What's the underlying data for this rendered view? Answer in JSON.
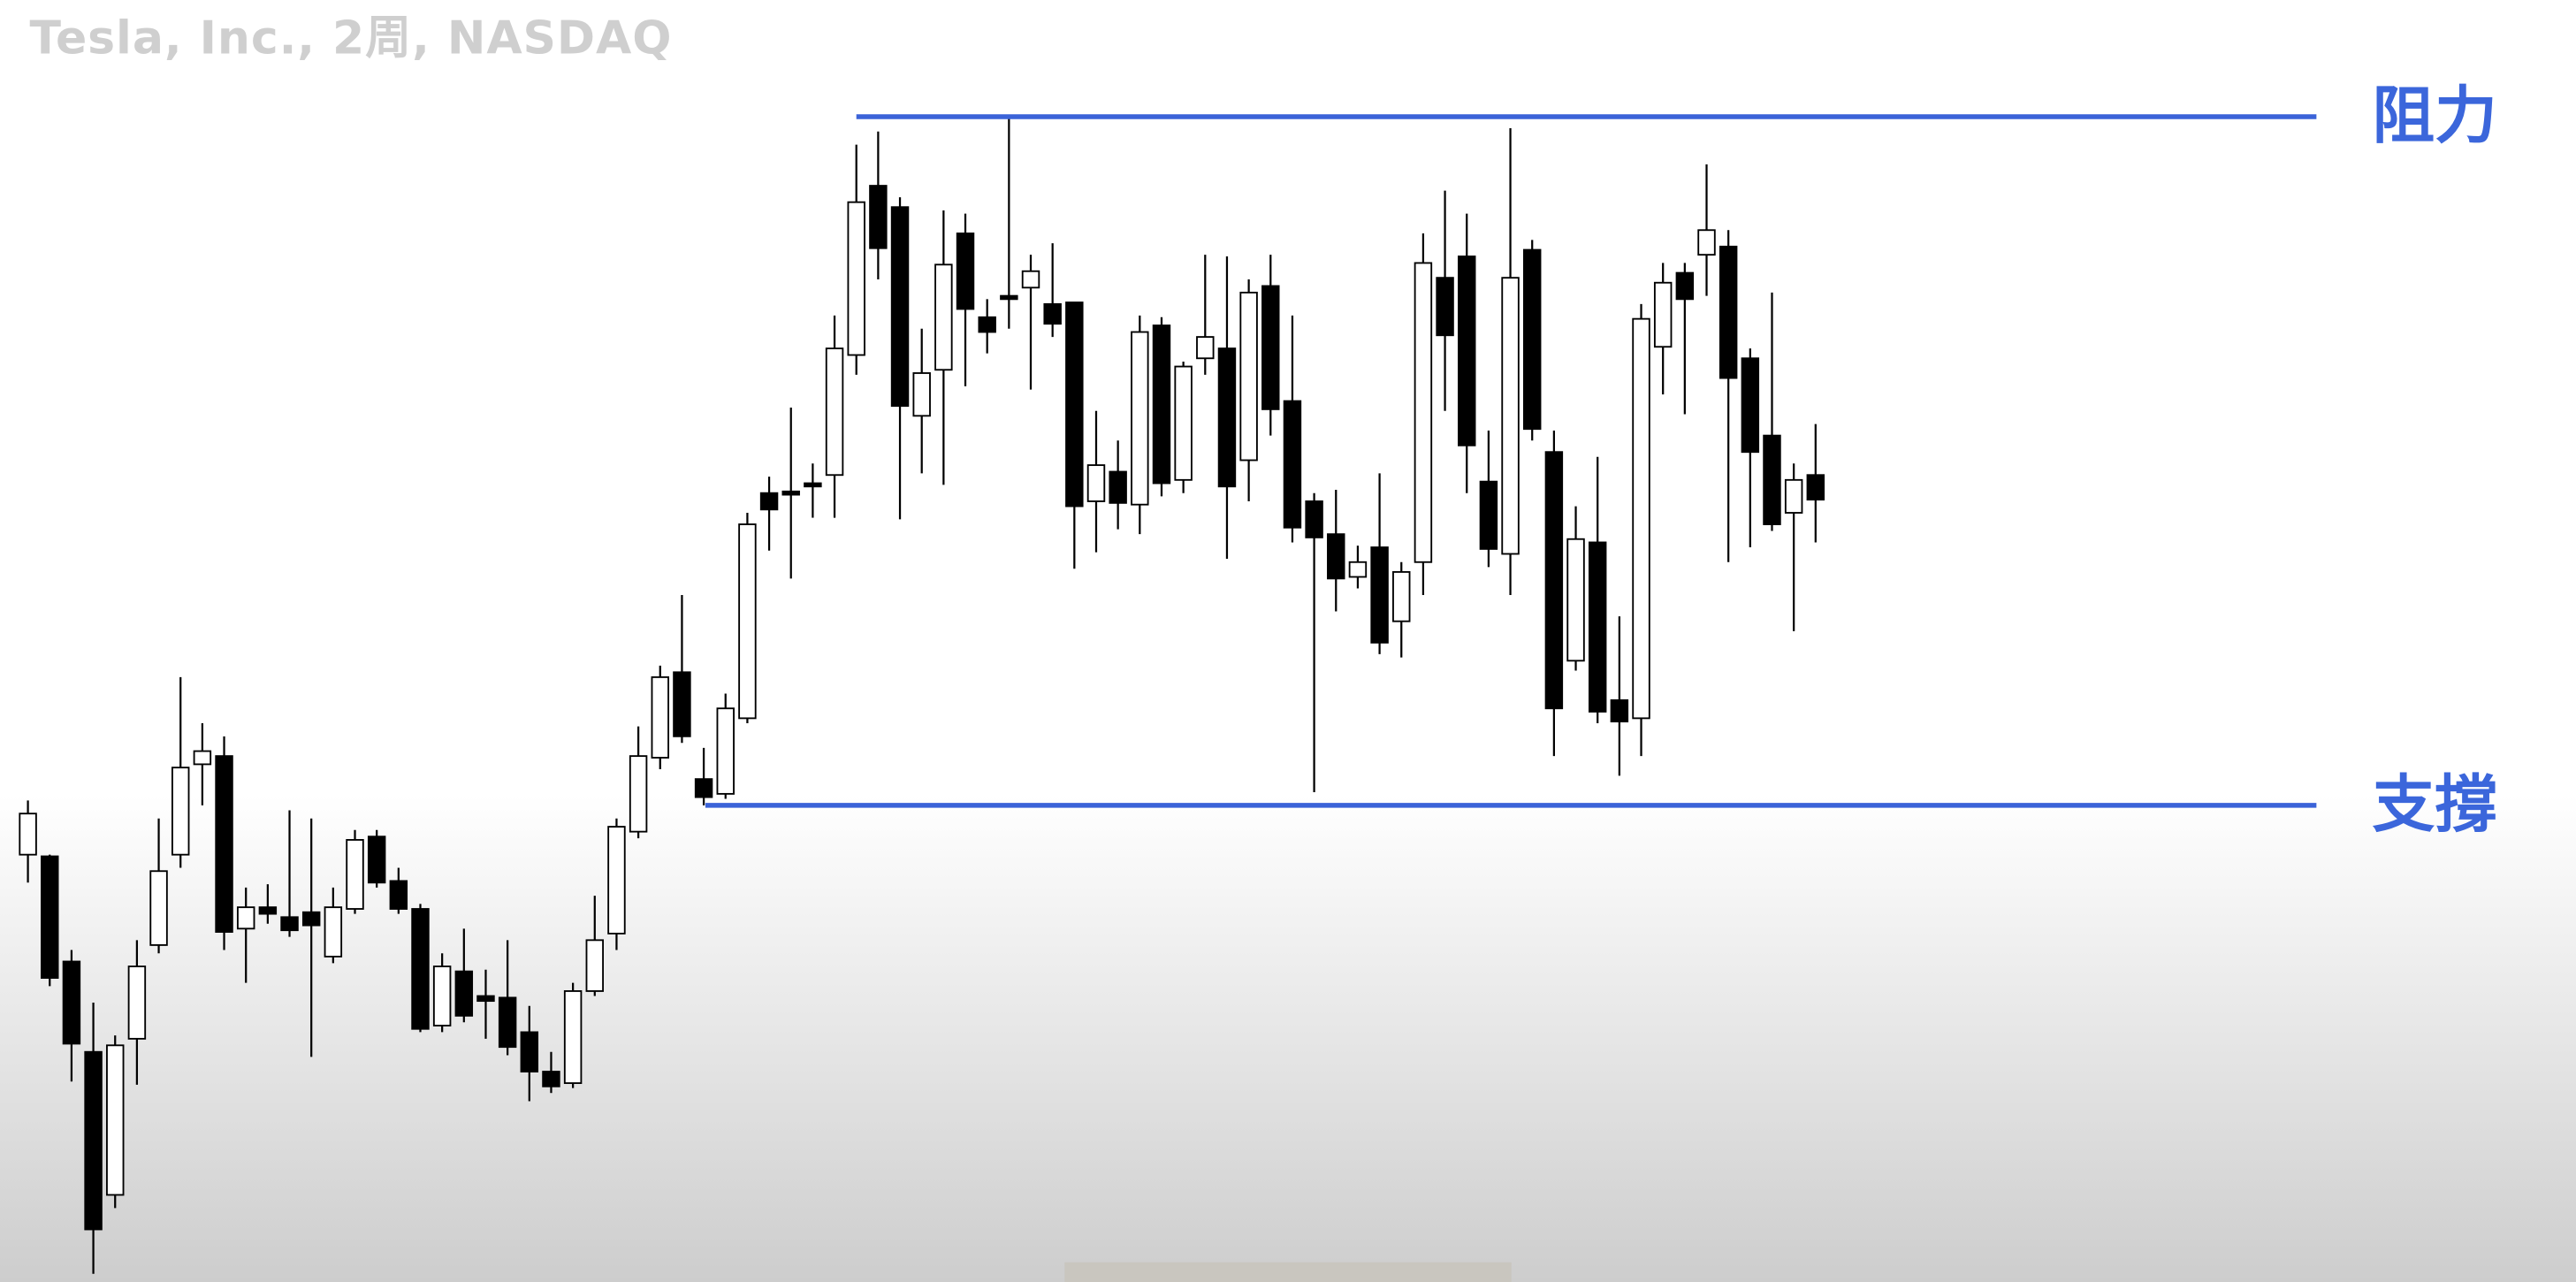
{
  "chart_data": {
    "type": "candlestick",
    "title": "Tesla, Inc., 2周, NASDAQ",
    "up_color": "#ffffff",
    "down_color": "#000000",
    "ylim": [
      0,
      780
    ],
    "open": [
      260,
      259,
      195,
      140,
      53,
      148,
      205,
      260,
      315,
      320,
      215,
      228,
      222,
      225,
      198,
      227,
      271,
      244,
      227,
      156,
      189,
      174,
      173,
      152,
      128,
      121,
      177,
      212,
      274,
      319,
      371,
      306,
      297,
      343,
      480,
      481,
      486,
      491,
      564,
      667,
      654,
      527,
      555,
      638,
      587,
      600,
      605,
      595,
      596,
      475,
      493,
      473,
      582,
      488,
      562,
      568,
      500,
      606,
      536,
      475,
      455,
      429,
      447,
      402,
      438,
      611,
      624,
      487,
      443,
      628,
      505,
      378,
      450,
      354,
      343,
      569,
      614,
      625,
      630,
      562,
      515,
      468,
      491
    ],
    "high": [
      293,
      260,
      202,
      170,
      150,
      208,
      282,
      368,
      340,
      332,
      240,
      242,
      287,
      282,
      240,
      275,
      275,
      252,
      230,
      200,
      215,
      190,
      208,
      168,
      140,
      182,
      235,
      282,
      338,
      375,
      418,
      325,
      358,
      468,
      490,
      532,
      498,
      588,
      692,
      700,
      660,
      580,
      652,
      650,
      598,
      708,
      625,
      632,
      596,
      530,
      512,
      588,
      587,
      560,
      625,
      624,
      610,
      625,
      588,
      480,
      482,
      448,
      492,
      438,
      638,
      664,
      650,
      518,
      702,
      634,
      518,
      472,
      502,
      405,
      595,
      620,
      620,
      680,
      640,
      568,
      602,
      498,
      522
    ],
    "low": [
      243,
      180,
      122,
      5,
      45,
      120,
      200,
      252,
      290,
      202,
      182,
      218,
      210,
      137,
      194,
      224,
      240,
      224,
      152,
      152,
      158,
      148,
      138,
      110,
      115,
      118,
      174,
      202,
      270,
      312,
      328,
      290,
      294,
      340,
      445,
      428,
      465,
      465,
      552,
      610,
      464,
      492,
      485,
      545,
      565,
      580,
      543,
      575,
      434,
      444,
      458,
      455,
      478,
      480,
      552,
      440,
      475,
      515,
      450,
      298,
      408,
      422,
      382,
      380,
      418,
      530,
      480,
      435,
      418,
      512,
      320,
      372,
      340,
      308,
      320,
      540,
      528,
      600,
      438,
      447,
      457,
      396,
      450
    ],
    "close": [
      285,
      185,
      145,
      32,
      144,
      192,
      250,
      313,
      323,
      213,
      228,
      224,
      214,
      217,
      228,
      269,
      243,
      227,
      154,
      192,
      162,
      171,
      143,
      128,
      119,
      177,
      208,
      277,
      320,
      368,
      332,
      295,
      349,
      461,
      470,
      479,
      484,
      568,
      657,
      629,
      533,
      553,
      619,
      592,
      578,
      598,
      615,
      583,
      472,
      497,
      474,
      578,
      486,
      557,
      575,
      484,
      602,
      531,
      459,
      453,
      428,
      438,
      389,
      432,
      620,
      576,
      509,
      446,
      611,
      519,
      349,
      452,
      347,
      341,
      586,
      608,
      598,
      640,
      550,
      505,
      461,
      488,
      476
    ],
    "levels": [
      {
        "label": "阻力",
        "value": 709,
        "color": "#3b63d8"
      },
      {
        "label": "支撐",
        "value": 290,
        "color": "#3b63d8"
      }
    ]
  }
}
